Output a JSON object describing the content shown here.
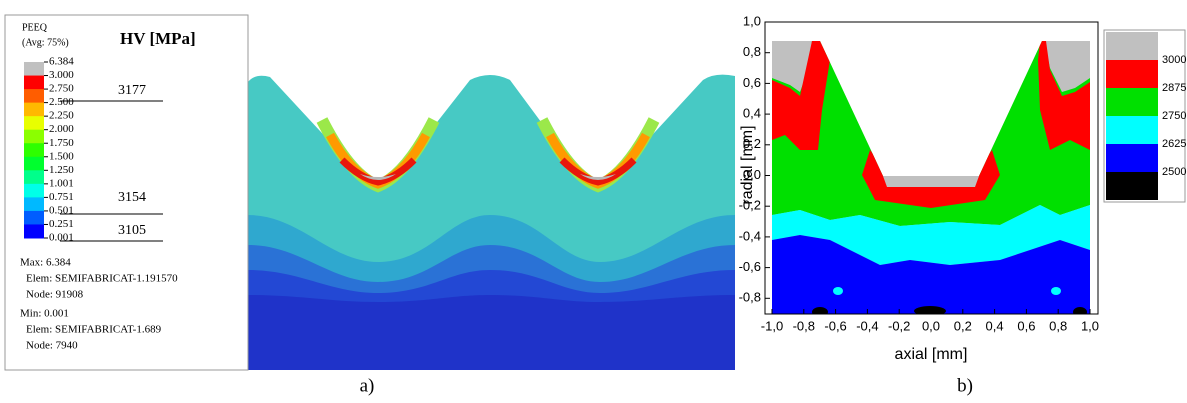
{
  "panel_a": {
    "legend_title": "PEEQ",
    "legend_subtitle": "(Avg: 75%)",
    "legend_labels": [
      "6.384",
      "3.000",
      "2.750",
      "2.500",
      "2.250",
      "2.000",
      "1.750",
      "1.500",
      "1.250",
      "1.001",
      "0.751",
      "0.501",
      "0.251",
      "0.001"
    ],
    "hardness_title": "HV [MPa]",
    "hardness_values": [
      "3177",
      "3154",
      "3105"
    ],
    "max": "Max: 6.384",
    "max_elem": "Elem: SEMIFABRICAT-1.191570",
    "max_node": "Node: 91908",
    "min": "Min: 0.001",
    "min_elem": "Elem: SEMIFABRICAT-1.689",
    "min_node": "Node: 7940",
    "label": "a)"
  },
  "panel_b": {
    "y_axis_label": "radial [mm]",
    "x_axis_label": "axial [mm]",
    "yticks": [
      "1,0",
      "0,8",
      "0,6",
      "0,4",
      "0,2",
      "0,0",
      "-0,2",
      "-0,4",
      "-0,6",
      "-0,8"
    ],
    "xticks": [
      "-1,0",
      "-0,8",
      "-0,6",
      "-0,4",
      "-0,2",
      "0,0",
      "0,2",
      "0,4",
      "0,6",
      "0,8",
      "1,0"
    ],
    "legend": [
      "3000",
      "2875",
      "2750",
      "2625",
      "2500"
    ],
    "label": "b)"
  }
}
